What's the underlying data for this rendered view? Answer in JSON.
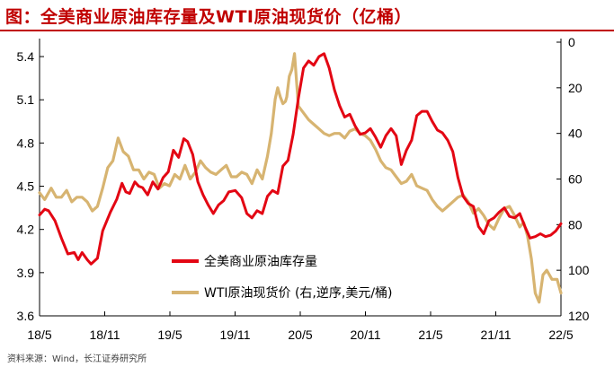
{
  "title": "图：全美商业原油库存量及WTI原油现货价（亿桶）",
  "source": "资料来源：Wind，长江证券研究所",
  "colors": {
    "title": "#C00000",
    "inventory": "#E30613",
    "wti": "#D7B471",
    "axis": "#000000"
  },
  "chart_data": {
    "type": "line",
    "title": "全美商业原油库存量及WTI原油现货价（亿桶）",
    "x_tick_labels": [
      "18/5",
      "18/11",
      "19/5",
      "19/11",
      "20/5",
      "20/11",
      "21/5",
      "21/11",
      "22/5"
    ],
    "x_range": [
      "2018-05",
      "2022-05"
    ],
    "y_left": {
      "label": "全美商业原油库存量（亿桶）",
      "range": [
        3.6,
        5.5
      ],
      "ticks": [
        3.6,
        3.9,
        4.2,
        4.5,
        4.8,
        5.1,
        5.4
      ],
      "tick_labels": [
        "3.6",
        "3.9",
        "4.2",
        "4.5",
        "4.8",
        "5.1",
        "5.4"
      ]
    },
    "y_right": {
      "label": "WTI原油现货价（美元/桶，逆序）",
      "range": [
        0,
        120
      ],
      "reversed": true,
      "ticks": [
        0,
        20,
        40,
        60,
        80,
        100,
        120
      ],
      "tick_labels": [
        "0",
        "20",
        "40",
        "60",
        "80",
        "100",
        "120"
      ]
    },
    "legend": {
      "position": "bottom-center",
      "entries": [
        "全美商业原油库存量",
        "WTI原油现货价 (右,逆序,美元/桶)"
      ]
    },
    "series": [
      {
        "name": "全美商业原油库存量",
        "axis": "left",
        "color": "#E30613",
        "x": [
          2018.33,
          2018.37,
          2018.4,
          2018.45,
          2018.5,
          2018.55,
          2018.6,
          2018.63,
          2018.66,
          2018.7,
          2018.73,
          2018.78,
          2018.82,
          2018.88,
          2018.93,
          2018.97,
          2019.0,
          2019.03,
          2019.07,
          2019.1,
          2019.13,
          2019.17,
          2019.21,
          2019.25,
          2019.29,
          2019.33,
          2019.37,
          2019.41,
          2019.45,
          2019.48,
          2019.52,
          2019.56,
          2019.6,
          2019.64,
          2019.68,
          2019.72,
          2019.76,
          2019.8,
          2019.85,
          2019.9,
          2019.94,
          2019.98,
          2020.02,
          2020.06,
          2020.1,
          2020.14,
          2020.18,
          2020.22,
          2020.26,
          2020.3,
          2020.34,
          2020.38,
          2020.42,
          2020.46,
          2020.5,
          2020.54,
          2020.58,
          2020.62,
          2020.66,
          2020.7,
          2020.74,
          2020.78,
          2020.82,
          2020.86,
          2020.9,
          2020.94,
          2020.98,
          2021.02,
          2021.06,
          2021.1,
          2021.14,
          2021.18,
          2021.22,
          2021.26,
          2021.3,
          2021.34,
          2021.38,
          2021.42,
          2021.46,
          2021.5,
          2021.54,
          2021.58,
          2021.62,
          2021.66,
          2021.7,
          2021.74,
          2021.78,
          2021.82,
          2021.86,
          2021.9,
          2021.94,
          2021.98,
          2022.02,
          2022.06,
          2022.1,
          2022.14,
          2022.18,
          2022.22,
          2022.26,
          2022.3,
          2022.34,
          2022.38
        ],
        "values": [
          4.3,
          4.34,
          4.33,
          4.26,
          4.14,
          4.03,
          4.04,
          3.99,
          4.04,
          3.99,
          3.96,
          4.0,
          4.19,
          4.32,
          4.41,
          4.52,
          4.46,
          4.45,
          4.53,
          4.5,
          4.49,
          4.44,
          4.53,
          4.48,
          4.56,
          4.6,
          4.75,
          4.7,
          4.83,
          4.81,
          4.72,
          4.53,
          4.44,
          4.37,
          4.31,
          4.37,
          4.4,
          4.46,
          4.47,
          4.42,
          4.31,
          4.28,
          4.33,
          4.31,
          4.43,
          4.47,
          4.45,
          4.64,
          4.68,
          4.86,
          5.11,
          5.32,
          5.37,
          5.34,
          5.4,
          5.42,
          5.32,
          5.17,
          5.06,
          4.98,
          5.0,
          4.92,
          4.86,
          4.87,
          4.9,
          4.84,
          4.77,
          4.85,
          4.9,
          4.85,
          4.65,
          4.75,
          4.82,
          4.99,
          5.02,
          5.02,
          4.95,
          4.89,
          4.87,
          4.82,
          4.74,
          4.56,
          4.43,
          4.38,
          4.36,
          4.22,
          4.17,
          4.26,
          4.28,
          4.32,
          4.35,
          4.29,
          4.28,
          4.31,
          4.22,
          4.14,
          4.15,
          4.17,
          4.15,
          4.16,
          4.19,
          4.24
        ]
      },
      {
        "name": "WTI原油现货价 (右,逆序,美元/桶)",
        "axis": "right",
        "color": "#D7B471",
        "x": [
          2018.33,
          2018.37,
          2018.42,
          2018.46,
          2018.5,
          2018.54,
          2018.58,
          2018.62,
          2018.66,
          2018.7,
          2018.74,
          2018.78,
          2018.82,
          2018.86,
          2018.9,
          2018.94,
          2018.98,
          2019.02,
          2019.06,
          2019.1,
          2019.14,
          2019.18,
          2019.22,
          2019.26,
          2019.3,
          2019.34,
          2019.38,
          2019.42,
          2019.46,
          2019.5,
          2019.54,
          2019.58,
          2019.62,
          2019.66,
          2019.7,
          2019.74,
          2019.78,
          2019.82,
          2019.86,
          2019.9,
          2019.94,
          2019.98,
          2020.02,
          2020.06,
          2020.1,
          2020.13,
          2020.16,
          2020.18,
          2020.2,
          2020.22,
          2020.24,
          2020.25,
          2020.27,
          2020.29,
          2020.31,
          2020.34,
          2020.38,
          2020.42,
          2020.46,
          2020.5,
          2020.54,
          2020.58,
          2020.62,
          2020.66,
          2020.7,
          2020.74,
          2020.78,
          2020.82,
          2020.86,
          2020.9,
          2020.94,
          2020.98,
          2021.02,
          2021.06,
          2021.1,
          2021.14,
          2021.18,
          2021.22,
          2021.26,
          2021.3,
          2021.34,
          2021.38,
          2021.42,
          2021.46,
          2021.5,
          2021.54,
          2021.58,
          2021.62,
          2021.66,
          2021.7,
          2021.74,
          2021.78,
          2021.82,
          2021.86,
          2021.9,
          2021.94,
          2021.98,
          2022.02,
          2022.06,
          2022.09,
          2022.12,
          2022.15,
          2022.18,
          2022.21,
          2022.24,
          2022.27,
          2022.31,
          2022.35,
          2022.38
        ],
        "values": [
          66,
          69,
          64,
          68,
          68,
          65,
          70,
          68,
          68,
          70,
          74,
          72,
          64,
          55,
          52,
          42,
          48,
          50,
          56,
          56,
          60,
          57,
          58,
          64,
          62,
          63,
          58,
          60,
          54,
          60,
          57,
          52,
          55,
          57,
          58,
          56,
          54,
          59,
          59,
          57,
          58,
          62,
          56,
          60,
          50,
          40,
          25,
          20,
          24,
          27,
          26,
          24,
          15,
          12,
          5,
          28,
          31,
          34,
          36,
          38,
          40,
          41,
          40,
          40,
          42,
          39,
          38,
          40,
          41,
          43,
          47,
          52,
          55,
          56,
          59,
          62,
          61,
          58,
          63,
          64,
          65,
          69,
          72,
          74,
          72,
          70,
          68,
          67,
          70,
          75,
          73,
          76,
          80,
          82,
          77,
          73,
          72,
          76,
          81,
          79,
          85,
          95,
          110,
          114,
          102,
          100,
          104,
          104,
          110
        ]
      }
    ]
  }
}
